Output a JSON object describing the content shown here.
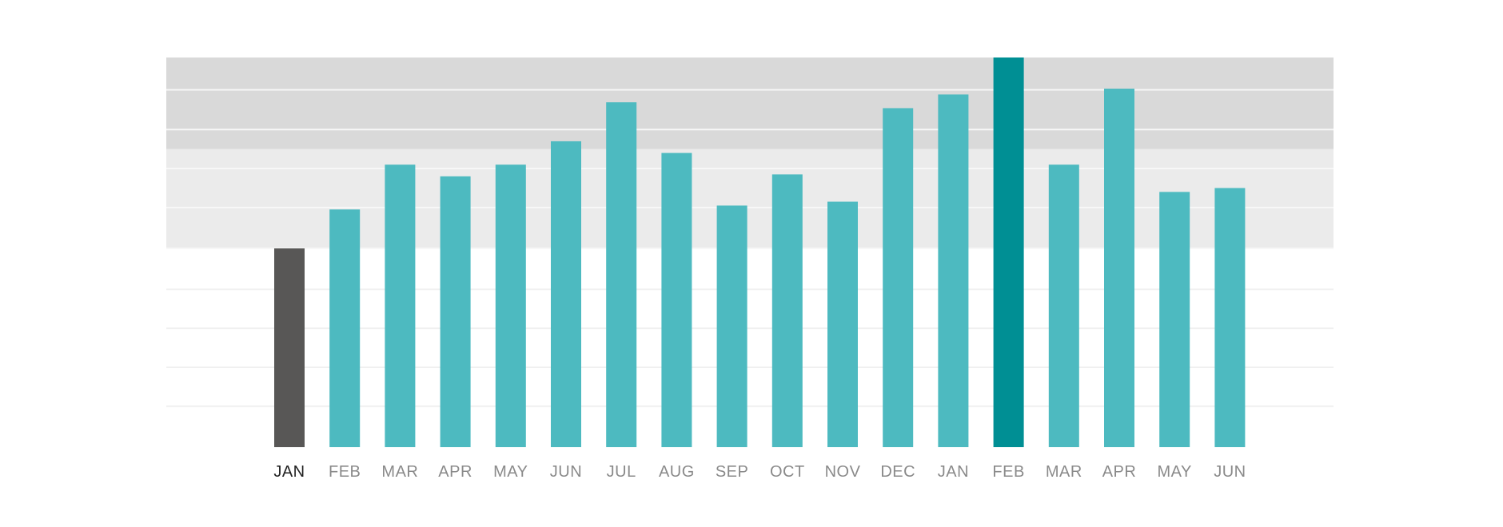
{
  "chart_data": {
    "type": "bar",
    "title": "",
    "xlabel": "",
    "ylabel": "",
    "ylim": [
      0,
      100
    ],
    "grid": true,
    "legend": "none",
    "categories": [
      "JAN",
      "FEB",
      "MAR",
      "APR",
      "MAY",
      "JUN",
      "JUL",
      "AUG",
      "SEP",
      "OCT",
      "NOV",
      "DEC",
      "JAN",
      "FEB",
      "MAR",
      "APR",
      "MAY",
      "JUN"
    ],
    "values": [
      51,
      61,
      72.5,
      69.5,
      72.5,
      78.5,
      88.5,
      75.5,
      62,
      70,
      63,
      87,
      90.5,
      100,
      72.5,
      92,
      65.5,
      66.5
    ],
    "highlight": {
      "first_bar_index": 0,
      "peak_bar_index": 13
    },
    "bands": [
      {
        "from": 51,
        "to": 76.5,
        "color": "#ebebeb"
      },
      {
        "from": 76.5,
        "to": 100,
        "color": "#d9d9d9"
      }
    ],
    "gridlines": [
      10.5,
      20.5,
      30.5,
      40.5,
      51,
      61.5,
      71.5,
      81.5,
      91.7
    ]
  },
  "colors": {
    "default_bar": "#4dbac0",
    "first_bar": "#585756",
    "peak_bar": "#008f94",
    "first_label": "#222222",
    "label": "#8a8a8a",
    "grid_light": "#f0f0f0",
    "grid_band": "#f7f7f7"
  }
}
